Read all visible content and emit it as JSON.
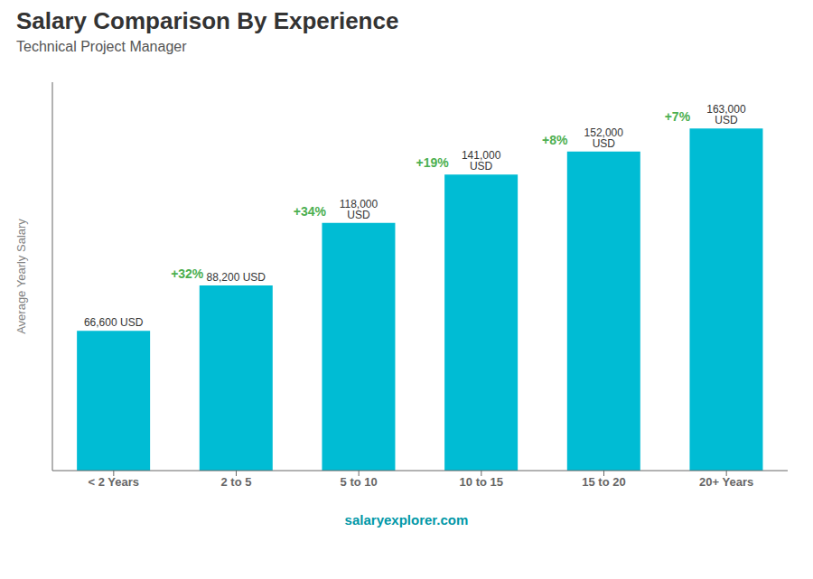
{
  "chart_data": {
    "type": "bar",
    "title": "Salary Comparison By Experience",
    "subtitle": "Technical Project Manager",
    "categories": [
      "< 2 Years",
      "2 to 5",
      "5 to 10",
      "10 to 15",
      "15 to 20",
      "20+ Years"
    ],
    "values": [
      66600,
      88200,
      118000,
      141000,
      152000,
      163000
    ],
    "value_labels": [
      "66,600 USD",
      "88,200 USD",
      "118,000 USD",
      "141,000 USD",
      "152,000 USD",
      "163,000 USD"
    ],
    "data_labels": true,
    "annotations": [
      "+32%",
      "+34%",
      "+19%",
      "+8%",
      "+7%"
    ],
    "ylabel": "Average Yearly Salary",
    "ylim": [
      0,
      185000
    ],
    "tick_labels": "x",
    "color": "#00bcd4",
    "source": "salaryexplorer.com"
  }
}
